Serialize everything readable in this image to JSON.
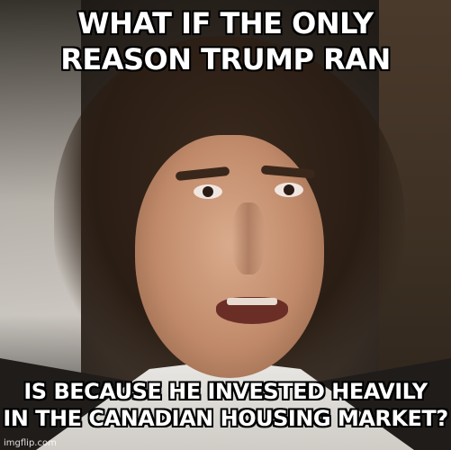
{
  "meme": {
    "top_text": [
      "WHAT IF THE ONLY",
      "REASON TRUMP RAN"
    ],
    "bottom_text": [
      "IS BECAUSE HE INVESTED HEAVILY",
      "IN THE CANADIAN HOUSING MARKET?"
    ],
    "watermark": "imgflip.com"
  }
}
